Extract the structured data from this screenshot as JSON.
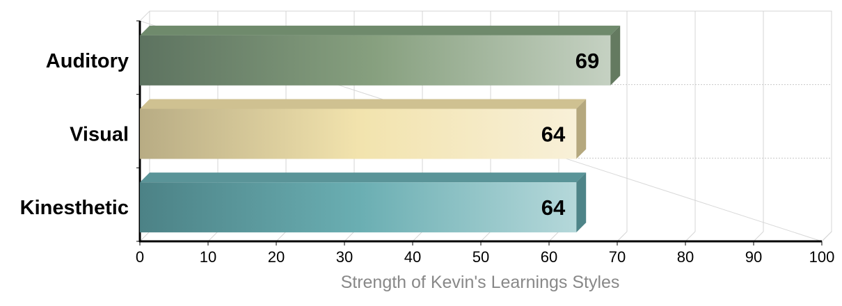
{
  "chart_data": {
    "type": "bar",
    "orientation": "horizontal",
    "style": "3d",
    "categories": [
      "Auditory",
      "Visual",
      "Kinesthetic"
    ],
    "values": [
      69,
      64,
      64
    ],
    "xlabel": "Strength of Kevin's Learnings Styles",
    "ylabel": "",
    "xlim": [
      0,
      100
    ],
    "xticks": [
      0,
      10,
      20,
      30,
      40,
      50,
      60,
      70,
      80,
      90,
      100
    ],
    "grid": true,
    "legend": "none",
    "colors": [
      {
        "dark": "#5d7360",
        "mid": "#87a07f",
        "light": "#c5d1c2",
        "top": "#6f8a6c",
        "side": "#647a60"
      },
      {
        "dark": "#b8ac84",
        "mid": "#f2e3ad",
        "light": "#f8f0d8",
        "top": "#cfc191",
        "side": "#b5a87e"
      },
      {
        "dark": "#4c8286",
        "mid": "#6aaeb2",
        "light": "#b5d8da",
        "top": "#5a9498",
        "side": "#4e8488"
      }
    ]
  }
}
